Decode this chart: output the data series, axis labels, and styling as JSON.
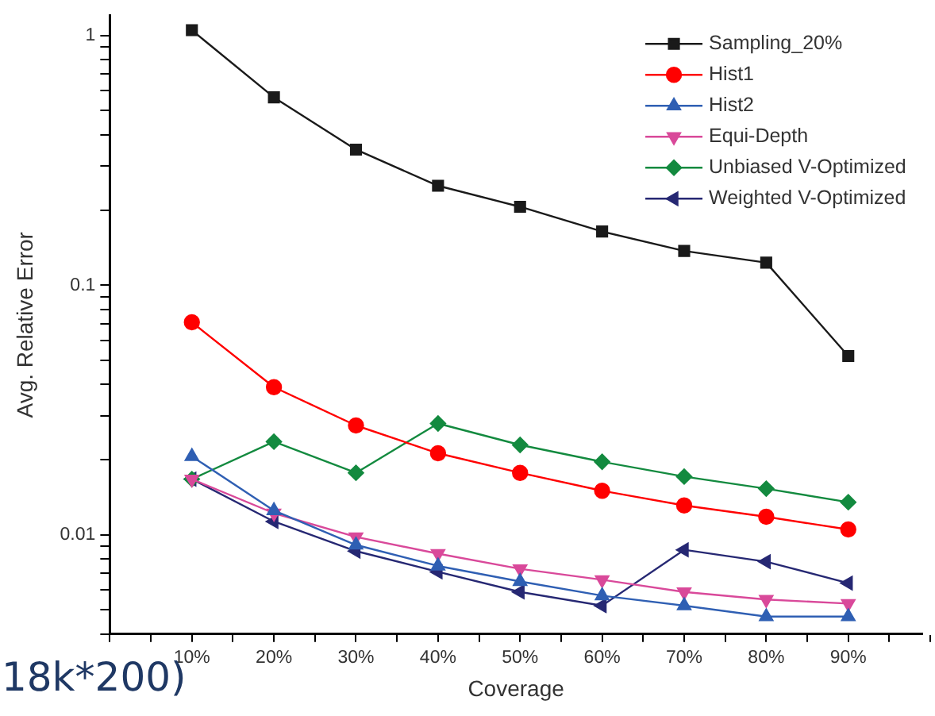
{
  "chart_data": {
    "type": "line",
    "xlabel": "Coverage",
    "ylabel": "Avg. Relative Error",
    "categories": [
      "10%",
      "20%",
      "30%",
      "40%",
      "50%",
      "60%",
      "70%",
      "80%",
      "90%"
    ],
    "log": "y",
    "ylim": [
      0.004,
      1.2
    ],
    "yticks": [
      {
        "value": 0.004,
        "label": null
      },
      {
        "value": 0.005,
        "label": null
      },
      {
        "value": 0.006,
        "label": null
      },
      {
        "value": 0.007,
        "label": null
      },
      {
        "value": 0.008,
        "label": null
      },
      {
        "value": 0.009,
        "label": null
      },
      0.01,
      {
        "value": 0.02,
        "label": null
      },
      {
        "value": 0.03,
        "label": null
      },
      {
        "value": 0.04,
        "label": null
      },
      {
        "value": 0.05,
        "label": null
      },
      {
        "value": 0.06,
        "label": null
      },
      {
        "value": 0.07,
        "label": null
      },
      {
        "value": 0.08,
        "label": null
      },
      {
        "value": 0.09,
        "label": null
      },
      0.1,
      {
        "value": 0.2,
        "label": null
      },
      {
        "value": 0.3,
        "label": null
      },
      {
        "value": 0.4,
        "label": null
      },
      {
        "value": 0.5,
        "label": null
      },
      {
        "value": 0.6,
        "label": null
      },
      {
        "value": 0.7,
        "label": null
      },
      {
        "value": 0.8,
        "label": null
      },
      {
        "value": 0.9,
        "label": null
      },
      1
    ],
    "grid": false,
    "legend": "top right",
    "line_style": "solid",
    "series": [
      {
        "name": "Sampling_20%",
        "color": "#1a1a1a",
        "marker": "square",
        "values": [
          1.05,
          0.565,
          0.349,
          0.25,
          0.206,
          0.164,
          0.137,
          0.123,
          0.052
        ]
      },
      {
        "name": "Hist1",
        "color": "#ff0000",
        "marker": "circle",
        "values": [
          0.071,
          0.039,
          0.0274,
          0.0212,
          0.0177,
          0.015,
          0.0131,
          0.0118,
          0.0105
        ]
      },
      {
        "name": "Hist2",
        "color": "#2f5fb3",
        "marker": "triangle",
        "values": [
          0.0206,
          0.0125,
          0.0091,
          0.0075,
          0.0065,
          0.0057,
          0.0052,
          0.0047,
          0.0047
        ]
      },
      {
        "name": "Equi-Depth",
        "color": "#d9499a",
        "marker": "triangle-down",
        "values": [
          0.0167,
          0.0122,
          0.0098,
          0.0084,
          0.0073,
          0.0066,
          0.0059,
          0.0055,
          0.0053
        ]
      },
      {
        "name": "Unbiased V-Optimized",
        "color": "#138a3f",
        "marker": "diamond",
        "values": [
          0.0167,
          0.0236,
          0.0177,
          0.0279,
          0.0229,
          0.0196,
          0.0171,
          0.0153,
          0.0135
        ]
      },
      {
        "name": "Weighted V-Optimized",
        "color": "#262873",
        "marker": "triangle-left",
        "values": [
          0.0167,
          0.0113,
          0.0086,
          0.0071,
          0.0059,
          0.0052,
          0.0087,
          0.0078,
          0.0064
        ]
      }
    ],
    "annotations": [
      "18k*200)"
    ]
  }
}
